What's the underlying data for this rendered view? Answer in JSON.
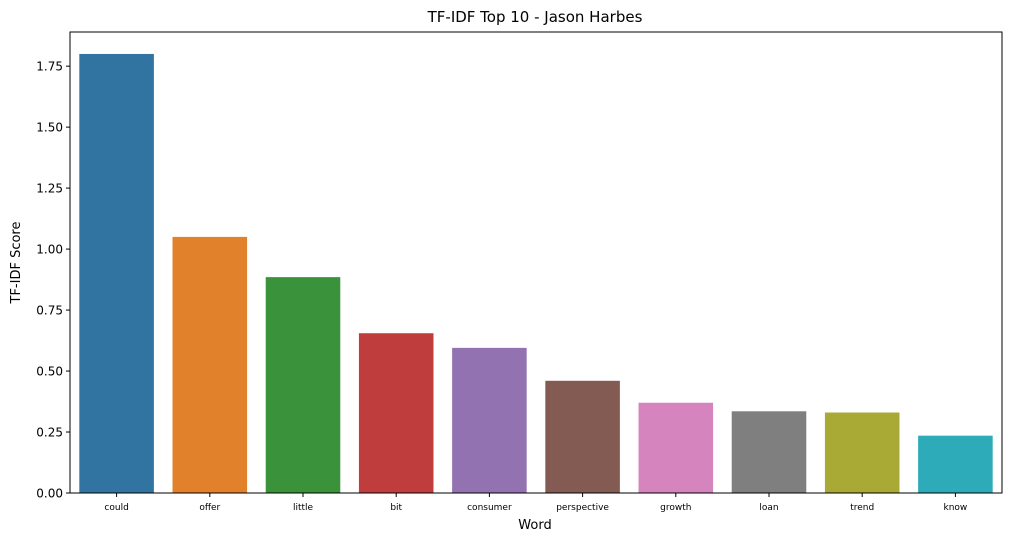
{
  "chart_data": {
    "type": "bar",
    "title": "TF-IDF Top 10 - Jason Harbes",
    "xlabel": "Word",
    "ylabel": "TF-IDF Score",
    "categories": [
      "could",
      "offer",
      "little",
      "bit",
      "consumer",
      "perspective",
      "growth",
      "loan",
      "trend",
      "know"
    ],
    "values": [
      1.8,
      1.05,
      0.885,
      0.655,
      0.595,
      0.46,
      0.37,
      0.335,
      0.33,
      0.235
    ],
    "ylim": [
      0,
      1.89
    ],
    "yticks": [
      0.0,
      0.25,
      0.5,
      0.75,
      1.0,
      1.25,
      1.5,
      1.75
    ],
    "ytick_labels": [
      "0.00",
      "0.25",
      "0.50",
      "0.75",
      "1.00",
      "1.25",
      "1.50",
      "1.75"
    ],
    "colors": [
      "#3274a1",
      "#e1812c",
      "#3a923a",
      "#c03d3e",
      "#9372b2",
      "#845b53",
      "#d684bd",
      "#7f7f7f",
      "#a9aa35",
      "#2eabb8"
    ],
    "grid": false,
    "legend": "none"
  }
}
